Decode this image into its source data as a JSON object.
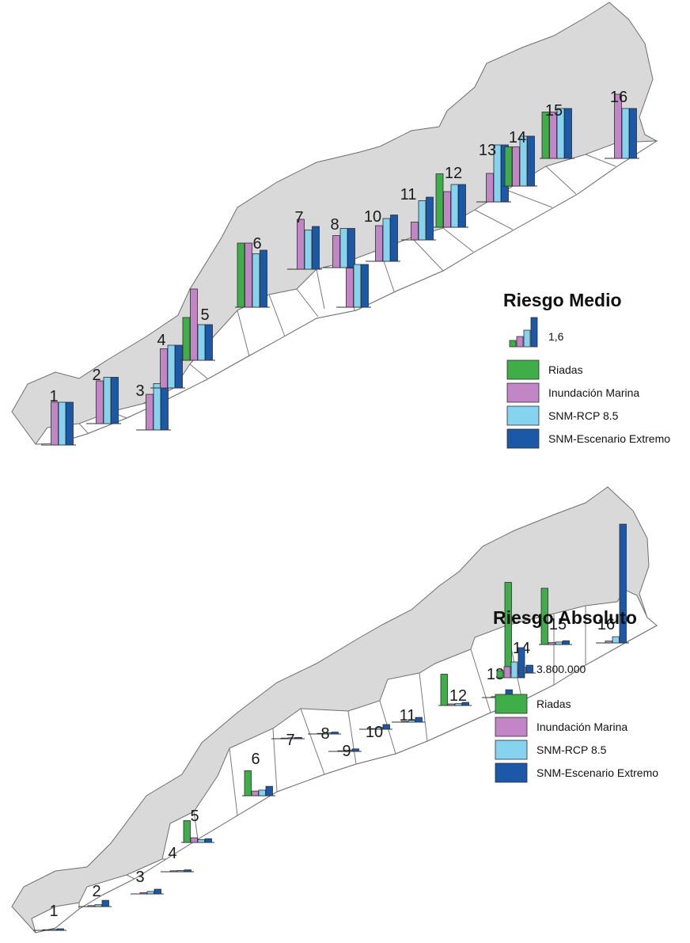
{
  "colors": {
    "riadas": "#3fae49",
    "inundacion": "#c285c6",
    "snm_rcp": "#86d3ef",
    "snm_extremo": "#1c58a8",
    "land": "#d9d9d9"
  },
  "maps": [
    {
      "legend": {
        "title": "Riesgo Medio",
        "scale_value": "1,6",
        "items": [
          "Riadas",
          "Inundación Marina",
          "SNM-RCP 8.5",
          "SNM-Escenario Extremo"
        ]
      },
      "chart_data": {
        "type": "bar",
        "title": "Riesgo Medio",
        "series": [
          {
            "name": "Riadas",
            "values": [
              0,
              0,
              0,
              0,
              0.72,
              1.08,
              0,
              0,
              0,
              0,
              0,
              0.9,
              0,
              0.66,
              0.78,
              0
            ]
          },
          {
            "name": "Inundación Marina",
            "values": [
              0.72,
              0.72,
              0.6,
              0.66,
              1.2,
              1.08,
              0.84,
              0.54,
              0.66,
              0.6,
              0.3,
              0.6,
              0.48,
              0.66,
              0.78,
              1.08
            ]
          },
          {
            "name": "SNM-RCP 8.5",
            "values": [
              0.72,
              0.78,
              0.78,
              0.72,
              0.6,
              0.9,
              0.66,
              0.66,
              0.72,
              0.72,
              0.66,
              0.72,
              0.96,
              0.84,
              0.84,
              0.84
            ]
          },
          {
            "name": "SNM-Escenario Extremo",
            "values": [
              0.72,
              0.78,
              0.78,
              0.72,
              0.6,
              0.96,
              0.72,
              0.66,
              0.72,
              0.78,
              0.72,
              0.72,
              0.96,
              0.84,
              0.84,
              0.84
            ]
          }
        ],
        "categories": [
          "1",
          "2",
          "3",
          "4",
          "5",
          "6",
          "7",
          "8",
          "9",
          "10",
          "11",
          "12",
          "13",
          "14",
          "15",
          "16"
        ],
        "legend_reference_value": 1.6
      }
    },
    {
      "legend": {
        "title": "Riesgo Absoluto",
        "scale_value": "3.800.000",
        "items": [
          "Riadas",
          "Inundación Marina",
          "SNM-RCP 8.5",
          "SNM-Escenario Extremo"
        ]
      },
      "chart_data": {
        "type": "bar",
        "title": "Riesgo Absoluto",
        "series": [
          {
            "name": "Riadas",
            "values": [
              0,
              0,
              0,
              0,
              700000,
              800000,
              0,
              0,
              0,
              0,
              0,
              1000000,
              0,
              2900000,
              1800000,
              0
            ]
          },
          {
            "name": "Inundación Marina",
            "values": [
              20000,
              30000,
              40000,
              30000,
              150000,
              150000,
              20000,
              20000,
              20000,
              20000,
              20000,
              50000,
              30000,
              100000,
              60000,
              60000
            ]
          },
          {
            "name": "SNM-RCP 8.5",
            "values": [
              30000,
              60000,
              80000,
              40000,
              90000,
              180000,
              30000,
              40000,
              40000,
              60000,
              60000,
              60000,
              80000,
              180000,
              80000,
              200000
            ]
          },
          {
            "name": "SNM-Escenario Extremo",
            "values": [
              50000,
              200000,
              150000,
              60000,
              120000,
              300000,
              40000,
              60000,
              80000,
              150000,
              150000,
              100000,
              250000,
              250000,
              120000,
              3800000
            ]
          }
        ],
        "categories": [
          "1",
          "2",
          "3",
          "4",
          "5",
          "6",
          "7",
          "8",
          "9",
          "10",
          "11",
          "12",
          "13",
          "14",
          "15",
          "16"
        ],
        "legend_reference_value": 3800000
      }
    }
  ]
}
